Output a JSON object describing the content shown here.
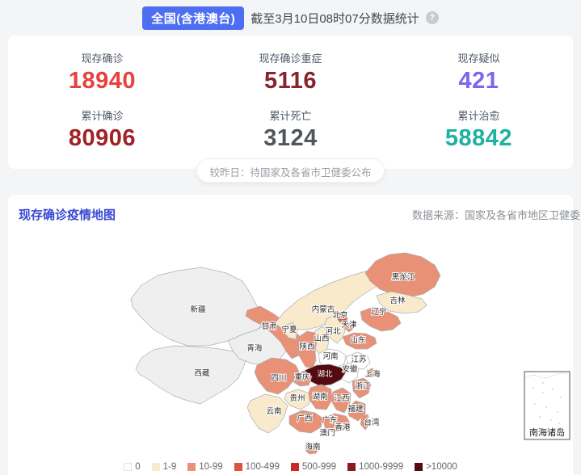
{
  "header": {
    "region_badge": "全国(含港澳台)",
    "timestamp_text": "截至3月10日08时07分数据统计",
    "help_icon_glyph": "?"
  },
  "stats": {
    "cards": [
      {
        "label": "现存确诊",
        "value": "18940",
        "color": "#e7413e"
      },
      {
        "label": "现存确诊重症",
        "value": "5116",
        "color": "#8a222d"
      },
      {
        "label": "现存疑似",
        "value": "421",
        "color": "#8064f0"
      },
      {
        "label": "累计确诊",
        "value": "80906",
        "color": "#a22026"
      },
      {
        "label": "累计死亡",
        "value": "3124",
        "color": "#51565b"
      },
      {
        "label": "累计治愈",
        "value": "58842",
        "color": "#1fb2a0"
      }
    ],
    "note": "较昨日：待国家及各省市卫健委公布"
  },
  "map_section": {
    "title": "现存确诊疫情地图",
    "source": "数据来源：国家及各省市地区卫健委",
    "inset_label": "南海诸岛",
    "level_colors": {
      "gray": "#efeff0",
      "0": "#ffffff",
      "1-9": "#f9eacb",
      "10-99": "#e89177",
      "100-499": "#e1523d",
      "500-999": "#ca2a27",
      "1000-9999": "#8a1a1d",
      ">10000": "#530a10"
    },
    "legend": [
      {
        "label": "0",
        "level": "0"
      },
      {
        "label": "1-9",
        "level": "1-9"
      },
      {
        "label": "10-99",
        "level": "10-99"
      },
      {
        "label": "100-499",
        "level": "100-499"
      },
      {
        "label": "500-999",
        "level": "500-999"
      },
      {
        "label": "1000-9999",
        "level": "1000-9999"
      },
      {
        "label": ">10000",
        "level": ">10000"
      }
    ],
    "provinces": [
      {
        "id": "xinjiang",
        "name": "新疆",
        "level": "gray",
        "label": [
          245,
          378
        ]
      },
      {
        "id": "xizang",
        "name": "西藏",
        "level": "gray",
        "label": [
          250,
          457
        ]
      },
      {
        "id": "qinghai",
        "name": "青海",
        "level": "gray",
        "label": [
          315,
          426
        ]
      },
      {
        "id": "gansu",
        "name": "甘肃",
        "level": "10-99",
        "label": [
          333,
          399
        ]
      },
      {
        "id": "neimenggu",
        "name": "内蒙古",
        "level": "1-9",
        "label": [
          400,
          378
        ]
      },
      {
        "id": "heilongjiang",
        "name": "黑龙江",
        "level": "10-99",
        "label": [
          499,
          338
        ]
      },
      {
        "id": "jilin",
        "name": "吉林",
        "level": "1-9",
        "label": [
          492,
          367
        ]
      },
      {
        "id": "liaoning",
        "name": "辽宁",
        "level": "10-99",
        "label": [
          469,
          381
        ]
      },
      {
        "id": "beijing",
        "name": "北京",
        "level": "100-499",
        "label": [
          421,
          385
        ]
      },
      {
        "id": "tianjin",
        "name": "天津",
        "level": "10-99",
        "label": [
          432,
          397
        ]
      },
      {
        "id": "hebei",
        "name": "河北",
        "level": "1-9",
        "label": [
          412,
          405
        ]
      },
      {
        "id": "shanxi",
        "name": "山西",
        "level": "1-9",
        "label": [
          398,
          414
        ]
      },
      {
        "id": "shandong",
        "name": "山东",
        "level": "10-99",
        "label": [
          443,
          416
        ]
      },
      {
        "id": "henan",
        "name": "河南",
        "level": "0",
        "label": [
          409,
          436
        ]
      },
      {
        "id": "shaanxi",
        "name": "陕西",
        "level": "10-99",
        "label": [
          380,
          424
        ]
      },
      {
        "id": "ningxia",
        "name": "宁夏",
        "level": "1-9",
        "label": [
          358,
          403
        ]
      },
      {
        "id": "jiangsu",
        "name": "江苏",
        "level": "0",
        "label": [
          444,
          440
        ]
      },
      {
        "id": "anhui",
        "name": "安徽",
        "level": "0",
        "label": [
          433,
          452
        ]
      },
      {
        "id": "shanghai",
        "name": "上海",
        "level": "10-99",
        "label": [
          461,
          458
        ]
      },
      {
        "id": "zhejiang",
        "name": "浙江",
        "level": "10-99",
        "label": [
          449,
          473
        ]
      },
      {
        "id": "hubei",
        "name": "湖北",
        "level": ">10000",
        "label": [
          402,
          458
        ]
      },
      {
        "id": "chongqing",
        "name": "重庆",
        "level": "10-99",
        "label": [
          374,
          462
        ]
      },
      {
        "id": "sichuan",
        "name": "四川",
        "level": "10-99",
        "label": [
          345,
          463
        ]
      },
      {
        "id": "guizhou",
        "name": "贵州",
        "level": "1-9",
        "label": [
          368,
          488
        ]
      },
      {
        "id": "hunan",
        "name": "湖南",
        "level": "10-99",
        "label": [
          396,
          486
        ]
      },
      {
        "id": "jiangxi",
        "name": "江西",
        "level": "10-99",
        "label": [
          423,
          488
        ]
      },
      {
        "id": "fujian",
        "name": "福建",
        "level": "10-99",
        "label": [
          440,
          501
        ]
      },
      {
        "id": "yunnan",
        "name": "云南",
        "level": "1-9",
        "label": [
          339,
          504
        ]
      },
      {
        "id": "guangxi",
        "name": "广西",
        "level": "10-99",
        "label": [
          377,
          513
        ]
      },
      {
        "id": "guangdong",
        "name": "广东",
        "level": "10-99",
        "label": [
          408,
          515
        ]
      },
      {
        "id": "xianggang",
        "name": "香港",
        "level": "10-99",
        "label": [
          424,
          524
        ]
      },
      {
        "id": "aomen",
        "name": "澳门",
        "level": "10-99",
        "label": [
          405,
          531
        ]
      },
      {
        "id": "taiwan",
        "name": "台湾",
        "level": "10-99",
        "label": [
          460,
          518
        ]
      },
      {
        "id": "hainan",
        "name": "海南",
        "level": "10-99",
        "label": [
          387,
          548
        ]
      }
    ]
  }
}
